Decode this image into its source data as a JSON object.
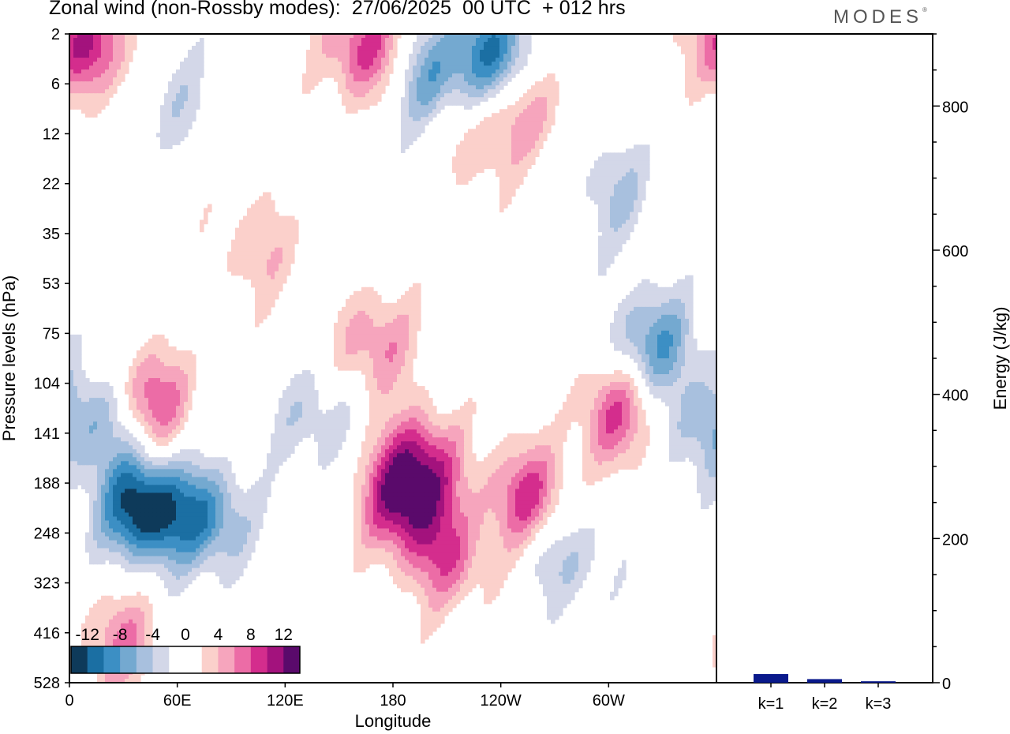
{
  "header": {
    "title": "Zonal wind (non-Rossby modes):  27/06/2025  00 UTC  + 012 hrs",
    "logo": "MODES",
    "logo_mark": "®"
  },
  "colors": {
    "scale": [
      "#0e3a5a",
      "#1b6fa3",
      "#3c8fc4",
      "#74a9d0",
      "#a8c0de",
      "#d3d7e8",
      "#ffffff",
      "#ffffff",
      "#fbd0cb",
      "#f6a5bd",
      "#ec6ca6",
      "#d42d8d",
      "#a3127d",
      "#5a0a6b"
    ],
    "bar": "#0a1a8c"
  },
  "chart_data": [
    {
      "type": "heatmap",
      "title": "Zonal wind (non-Rossby modes):  27/06/2025  00 UTC  + 012 hrs",
      "xlabel": "Longitude",
      "ylabel": "Pressure levels (hPa)",
      "x_ticks": [
        "0",
        "60E",
        "120E",
        "180",
        "120W",
        "60W"
      ],
      "x_tick_degrees": [
        0,
        60,
        120,
        180,
        240,
        300
      ],
      "xlim": [
        0,
        360
      ],
      "y_ticks": [
        "2",
        "6",
        "12",
        "22",
        "35",
        "53",
        "75",
        "104",
        "141",
        "188",
        "248",
        "323",
        "416",
        "528"
      ],
      "colorbar": {
        "levels": [
          -14,
          -12,
          -10,
          -8,
          -6,
          -4,
          -2,
          0,
          2,
          4,
          6,
          8,
          10,
          12,
          14
        ],
        "labels": [
          "-12",
          "-8",
          "-4",
          "0",
          "4",
          "8",
          "12"
        ]
      },
      "features": [
        {
          "lon": 40,
          "level": 9.5,
          "value": -14
        },
        {
          "lon": 75,
          "level": 9.7,
          "value": -9
        },
        {
          "lon": 25,
          "level": 7.6,
          "value": -8
        },
        {
          "lon": 42,
          "level": 7.4,
          "value": 11
        },
        {
          "lon": 185,
          "level": 9.4,
          "value": 10
        },
        {
          "lon": 195,
          "level": 8.6,
          "value": 9
        },
        {
          "lon": 210,
          "level": 10.5,
          "value": 7
        },
        {
          "lon": 255,
          "level": 9.3,
          "value": 9
        },
        {
          "lon": 235,
          "level": 0.4,
          "value": -10
        },
        {
          "lon": 200,
          "level": 0.9,
          "value": -7
        },
        {
          "lon": 10,
          "level": 0.2,
          "value": 10
        },
        {
          "lon": 165,
          "level": 0.3,
          "value": 9
        },
        {
          "lon": 325,
          "level": 6.2,
          "value": -8
        },
        {
          "lon": 305,
          "level": 7.6,
          "value": 8
        },
        {
          "lon": 350,
          "level": 7.9,
          "value": -5
        },
        {
          "lon": 225,
          "level": 2.1,
          "value": 4
        },
        {
          "lon": 105,
          "level": 4.3,
          "value": 4
        },
        {
          "lon": 255,
          "level": 1.5,
          "value": 5
        },
        {
          "lon": 305,
          "level": 3.2,
          "value": -4
        },
        {
          "lon": 170,
          "level": 6.2,
          "value": 6
        },
        {
          "lon": 135,
          "level": 7.7,
          "value": -4
        },
        {
          "lon": 30,
          "level": 12.2,
          "value": 6
        },
        {
          "lon": 275,
          "level": 10.4,
          "value": -5
        },
        {
          "lon": 60,
          "level": 1.4,
          "value": -3
        }
      ]
    },
    {
      "type": "bar",
      "ylabel": "Energy (J/kg)",
      "categories": [
        "k=1",
        "k=2",
        "k=3"
      ],
      "values": [
        12,
        5,
        2
      ],
      "ylim": [
        0,
        900
      ],
      "y_ticks": [
        "0",
        "200",
        "400",
        "600",
        "800"
      ],
      "y_tick_values": [
        0,
        200,
        400,
        600,
        800
      ]
    }
  ]
}
